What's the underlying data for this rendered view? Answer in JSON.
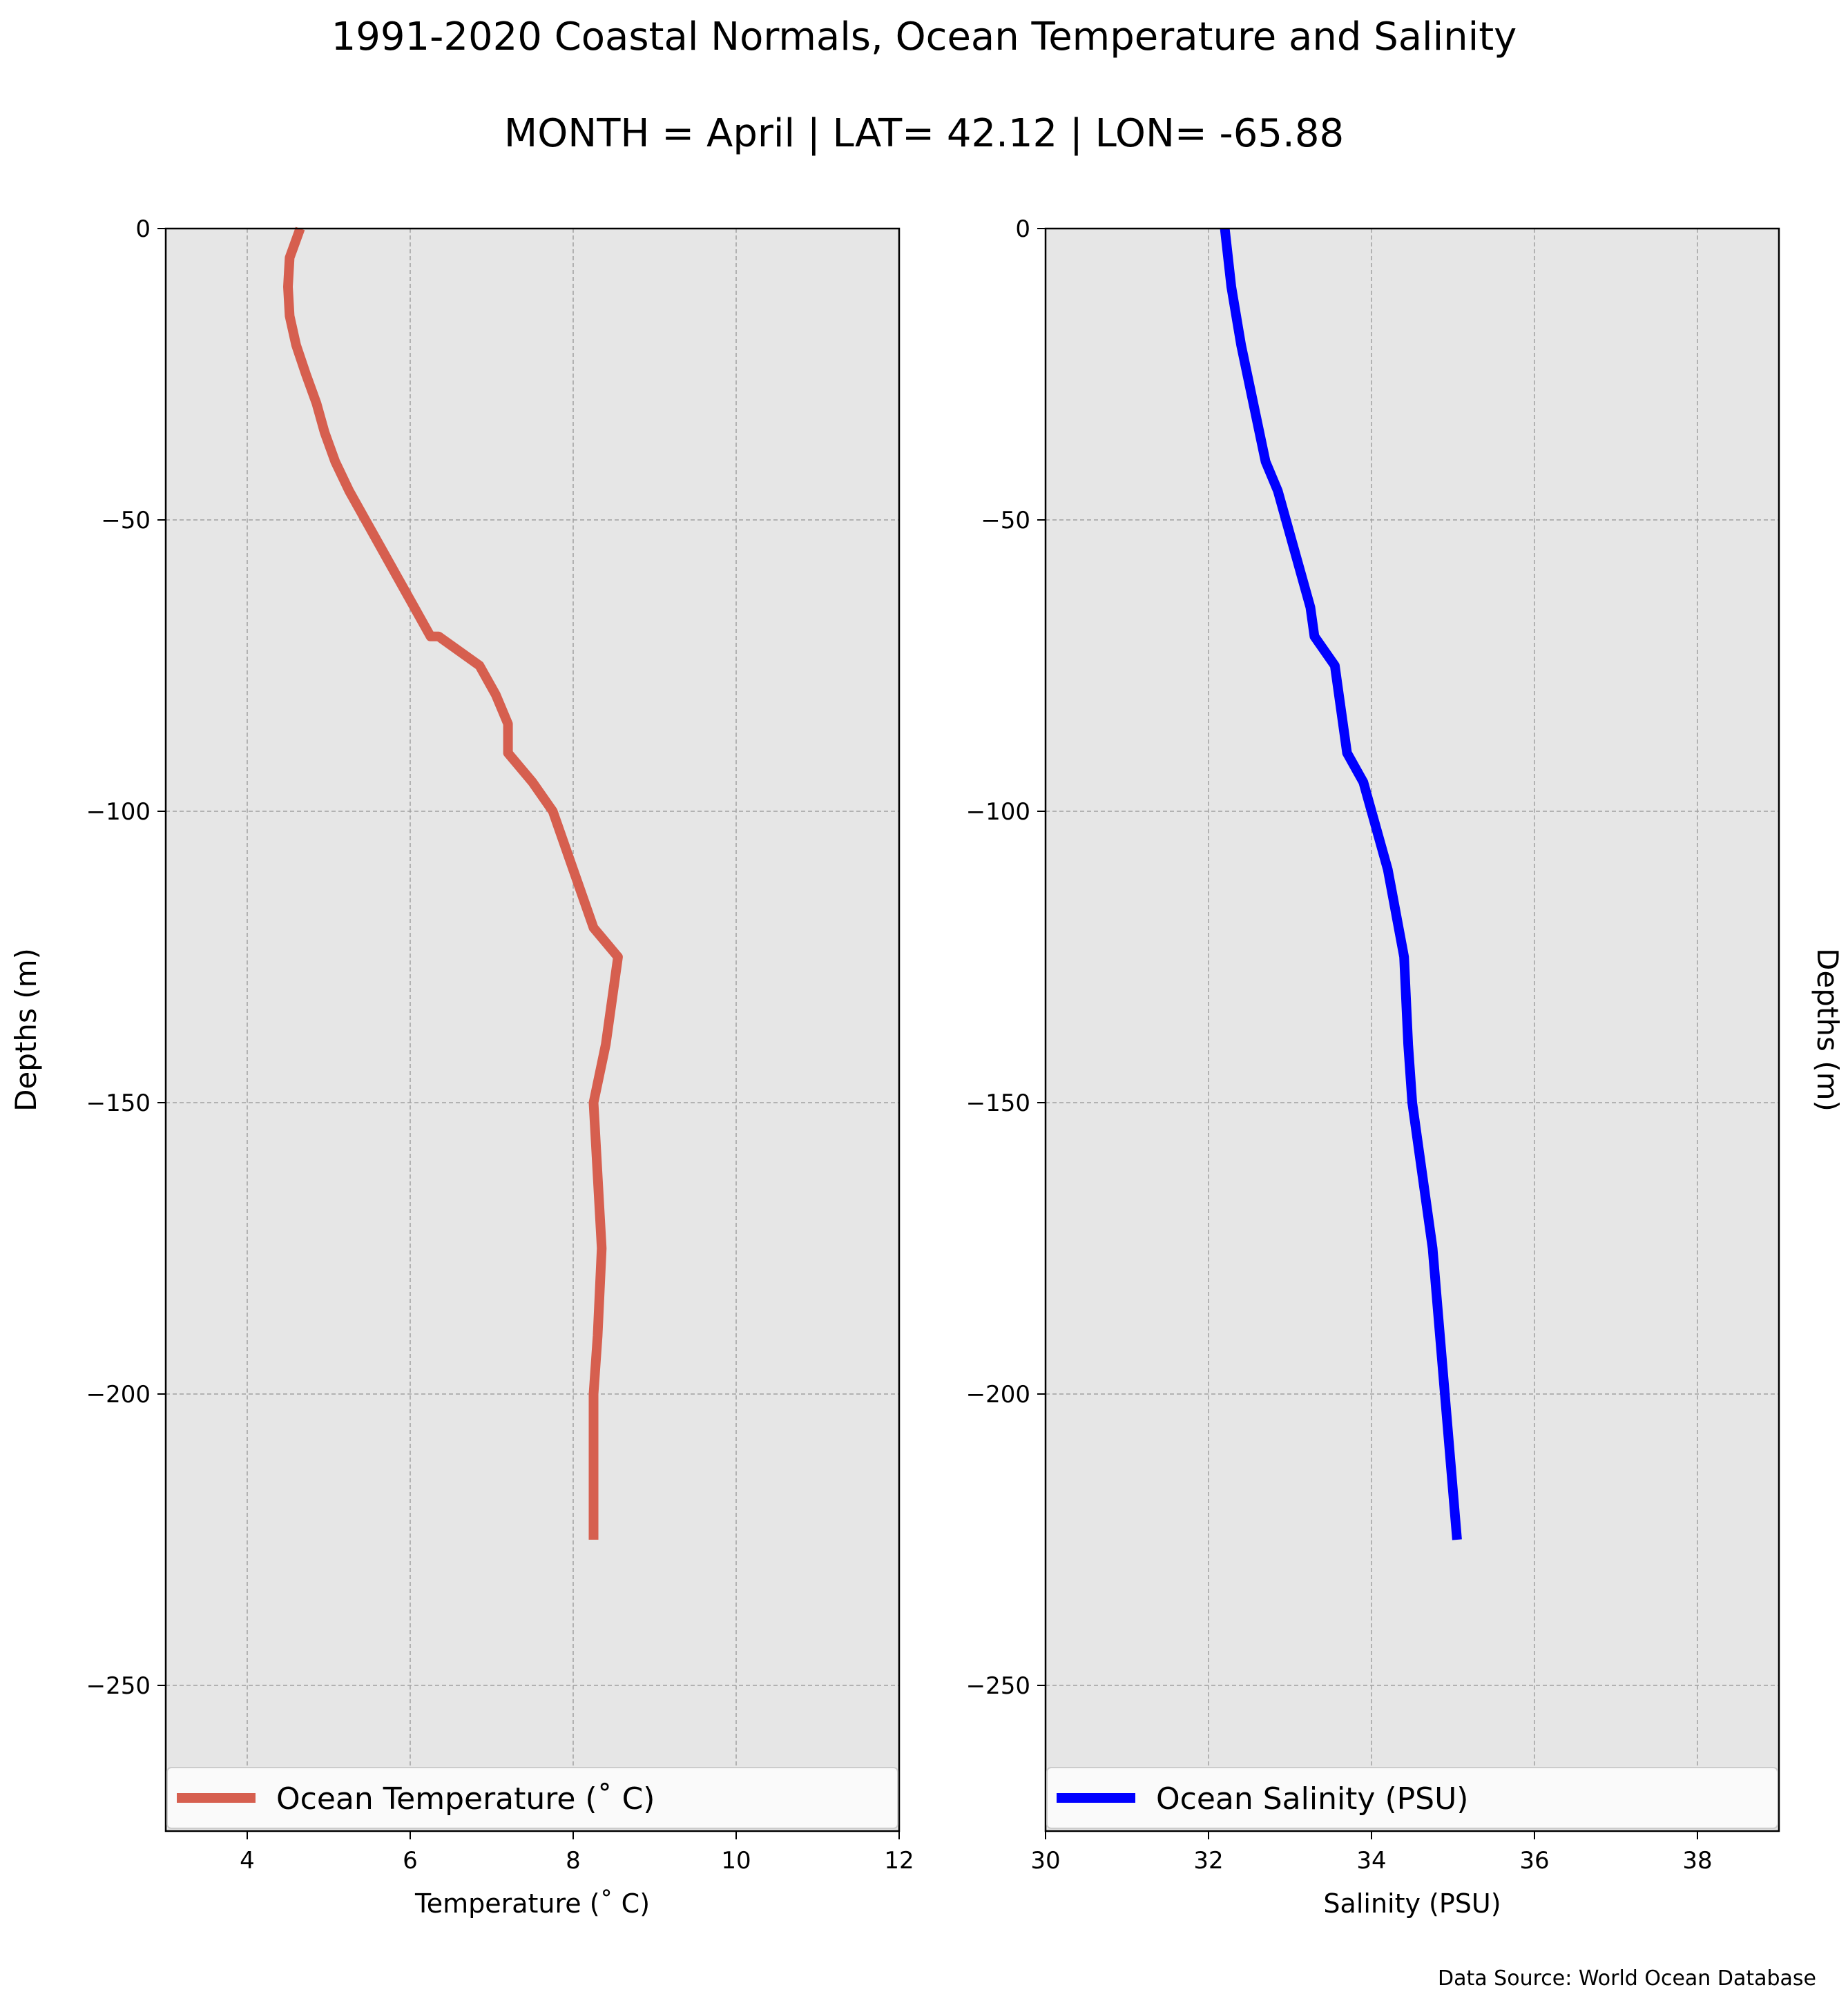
{
  "figure": {
    "title_line1": "1991-2020 Coastal Normals, Ocean Temperature and Salinity",
    "title_line2": "MONTH = April | LAT= 42.12 | LON= -65.88",
    "source_note": "Data Source: World Ocean Database"
  },
  "colors": {
    "temperature": "#d65f4f",
    "salinity": "#0000ff",
    "plot_background": "#e6e6e6",
    "grid": "#a0a0a0"
  },
  "chart_data": [
    {
      "type": "line",
      "xlabel": "Temperature ($^\\circ$C)",
      "xlabel_display": "Temperature (˚ C)",
      "ylabel": "Depths (m)",
      "ylabel_position": "left",
      "xlim": [
        3,
        12
      ],
      "ylim": [
        -275,
        0
      ],
      "x_ticks": [
        4,
        6,
        8,
        10,
        12
      ],
      "x_tick_labels": [
        "4",
        "6",
        "8",
        "10",
        "12"
      ],
      "y_ticks": [
        0,
        -50,
        -100,
        -150,
        -200,
        -250
      ],
      "y_tick_labels": [
        "0",
        "−50",
        "−100",
        "−150",
        "−200",
        "−250"
      ],
      "grid": true,
      "legend_position": "bottom",
      "series": [
        {
          "name": "Ocean Temperature (˚ C)",
          "color": "#d65f4f",
          "x": [
            4.65,
            4.52,
            4.5,
            4.52,
            4.6,
            4.72,
            4.85,
            4.95,
            5.08,
            5.25,
            5.45,
            5.65,
            5.85,
            6.05,
            6.25,
            6.35,
            6.85,
            7.05,
            7.2,
            7.2,
            7.5,
            7.75,
            8.0,
            8.25,
            8.55,
            8.4,
            8.25,
            8.35,
            8.3,
            8.25,
            8.25
          ],
          "y": [
            0,
            -5,
            -10,
            -15,
            -20,
            -25,
            -30,
            -35,
            -40,
            -45,
            -50,
            -55,
            -60,
            -65,
            -70,
            -70,
            -75,
            -80,
            -85,
            -90,
            -95,
            -100,
            -110,
            -120,
            -125,
            -140,
            -150,
            -175,
            -190,
            -200,
            -225
          ]
        }
      ]
    },
    {
      "type": "line",
      "xlabel": "Salinity (PSU)",
      "ylabel": "Depths (m)",
      "ylabel_position": "right",
      "xlim": [
        30,
        39
      ],
      "ylim": [
        -275,
        0
      ],
      "x_ticks": [
        30,
        32,
        34,
        36,
        38
      ],
      "x_tick_labels": [
        "30",
        "32",
        "34",
        "36",
        "38"
      ],
      "y_ticks": [
        0,
        -50,
        -100,
        -150,
        -200,
        -250
      ],
      "y_tick_labels": [
        "0",
        "−50",
        "−100",
        "−150",
        "−200",
        "−250"
      ],
      "grid": true,
      "legend_position": "bottom",
      "series": [
        {
          "name": "Ocean Salinity (PSU)",
          "color": "#0000ff",
          "x": [
            32.2,
            32.28,
            32.4,
            32.55,
            32.7,
            32.85,
            33.05,
            33.25,
            33.3,
            33.55,
            33.65,
            33.7,
            33.9,
            34.0,
            34.2,
            34.4,
            34.45,
            34.5,
            34.75,
            35.05
          ],
          "y": [
            0,
            -10,
            -20,
            -30,
            -40,
            -45,
            -55,
            -65,
            -70,
            -75,
            -85,
            -90,
            -95,
            -100,
            -110,
            -125,
            -140,
            -150,
            -175,
            -225
          ]
        }
      ]
    }
  ]
}
